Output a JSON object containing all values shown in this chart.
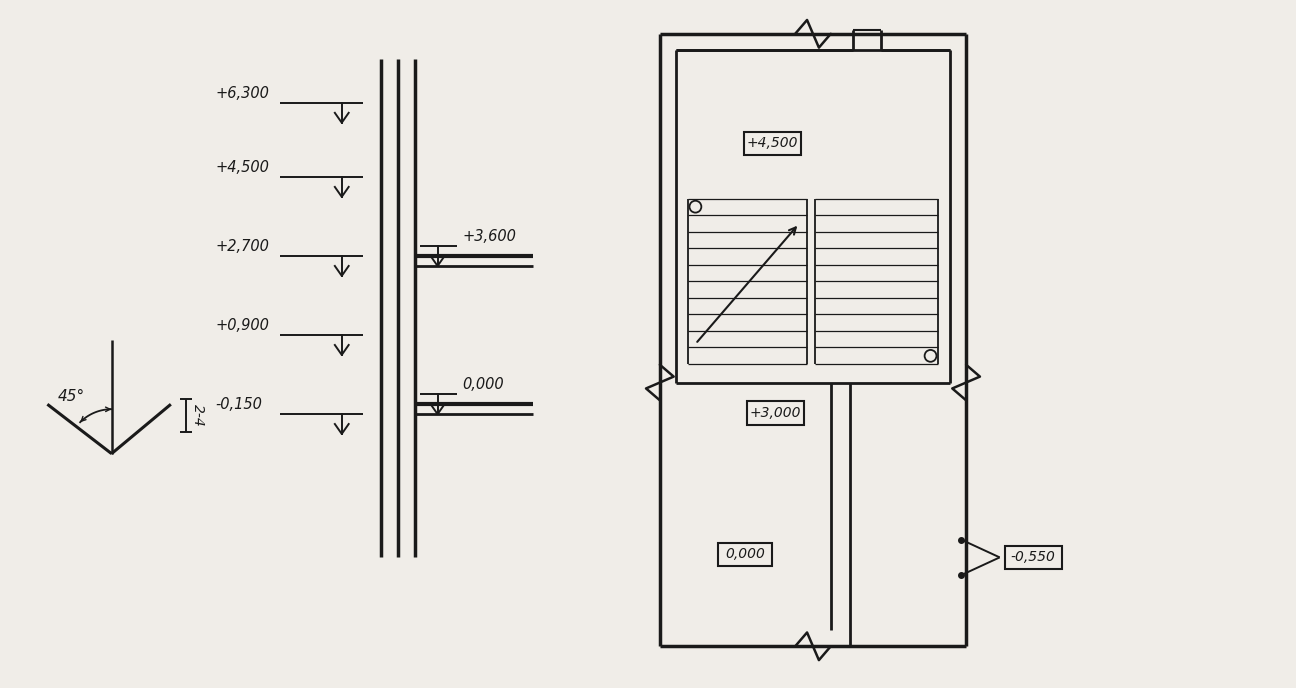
{
  "bg_color": "#f0ede8",
  "line_color": "#1a1a1a",
  "text_color": "#1a1a1a",
  "fig_w": 12.96,
  "fig_h": 6.88
}
